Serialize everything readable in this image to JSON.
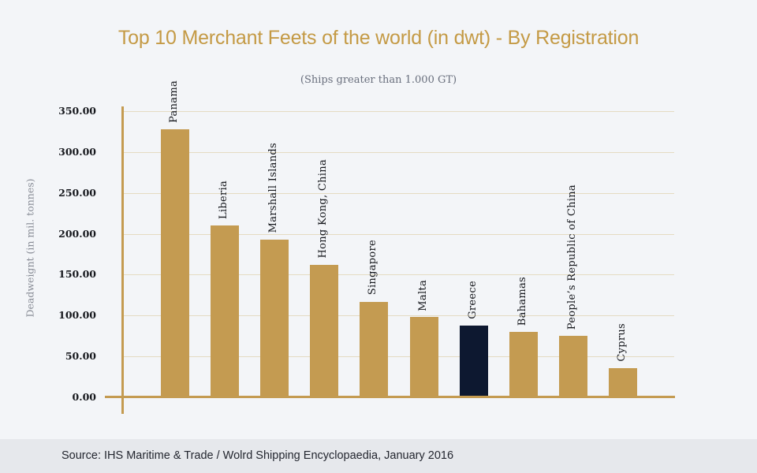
{
  "header": {
    "title": "Top 10 Merchant Feets of the world (in dwt) - By Registration",
    "subtitle": "(Ships greater than 1.000 GT)"
  },
  "footer": {
    "source": "Source: IHS Maritime & Trade / Wolrd Shipping Encyclopaedia, January 2016"
  },
  "colors": {
    "background": "#f3f5f8",
    "footer_band": "#e6e8ec",
    "title": "#c49a45",
    "subtitle": "#696f7d",
    "axis_gold": "#c49b51",
    "gridline": "#e4dbc2",
    "bar": "#c49b51",
    "highlight_bar": "#0d1830",
    "tick_text": "#16181d",
    "bar_label_text": "#16181d",
    "y_axis_title_text": "#878b95",
    "source_text": "#23262f"
  },
  "chart_data": {
    "type": "bar",
    "title": "Top 10 Merchant Feets of the world (in dwt) - By Registration",
    "subtitle": "(Ships greater than 1.000 GT)",
    "ylabel": "Deadweignt (in mil. tonnes)",
    "xlabel": "",
    "ylim": [
      0,
      350
    ],
    "ytick_step": 50,
    "ytick_labels": [
      "0.00",
      "50.00",
      "100.00",
      "150.00",
      "200.00",
      "250.00",
      "300.00",
      "350.00"
    ],
    "grid": true,
    "legend": false,
    "categories": [
      "Panama",
      "Liberia",
      "Marshall Islands",
      "Hong Kong, China",
      "Singapore",
      "Malta",
      "Greece",
      "Bahamas",
      "People’s Republic of China",
      "Cyprus"
    ],
    "values": [
      328,
      210,
      193,
      162,
      117,
      98,
      88,
      80,
      75,
      36
    ],
    "bar_color": "#c49b51",
    "highlight": {
      "category": "Greece",
      "color": "#0d1830"
    },
    "source": "Source: IHS Maritime & Trade / Wolrd Shipping Encyclopaedia, January 2016"
  }
}
